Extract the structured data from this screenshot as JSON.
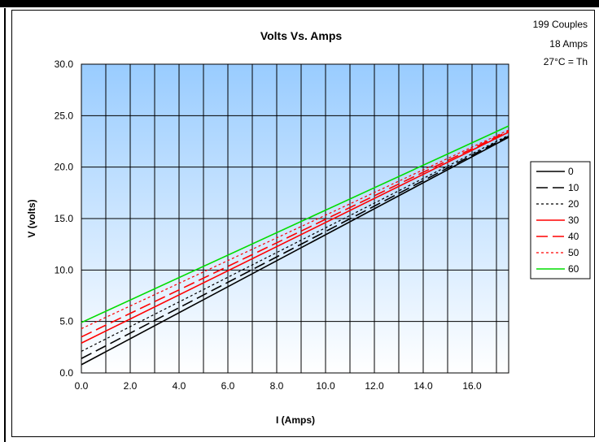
{
  "chart_data": {
    "type": "line",
    "title": "Volts Vs. Amps",
    "xlabel": "I (Amps)",
    "ylabel": "V (volts)",
    "xlim": [
      0,
      17.5
    ],
    "ylim": [
      0,
      30
    ],
    "x_ticks": [
      "0.0",
      "2.0",
      "4.0",
      "6.0",
      "8.0",
      "10.0",
      "12.0",
      "14.0",
      "16.0"
    ],
    "y_ticks": [
      "0.0",
      "5.0",
      "10.0",
      "15.0",
      "20.0",
      "25.0",
      "30.0"
    ],
    "grid": true,
    "legend_position": "right",
    "x": [
      0,
      17.5
    ],
    "series": [
      {
        "name": "0",
        "color": "#000000",
        "dash": "solid",
        "values": [
          0.8,
          22.9
        ]
      },
      {
        "name": "10",
        "color": "#000000",
        "dash": "long-dash",
        "values": [
          1.4,
          23.0
        ]
      },
      {
        "name": "20",
        "color": "#000000",
        "dash": "dotted",
        "values": [
          2.1,
          23.1
        ]
      },
      {
        "name": "30",
        "color": "#ff0000",
        "dash": "solid",
        "values": [
          2.9,
          23.4
        ]
      },
      {
        "name": "40",
        "color": "#ff0000",
        "dash": "long-dash",
        "values": [
          3.5,
          23.5
        ]
      },
      {
        "name": "50",
        "color": "#ff0000",
        "dash": "dotted",
        "values": [
          4.3,
          23.6
        ]
      },
      {
        "name": "60",
        "color": "#00dd00",
        "dash": "solid",
        "values": [
          4.9,
          24.0
        ]
      }
    ]
  },
  "info": {
    "line1": "199 Couples",
    "line2": "18 Amps",
    "line3": "27°C = Th"
  }
}
